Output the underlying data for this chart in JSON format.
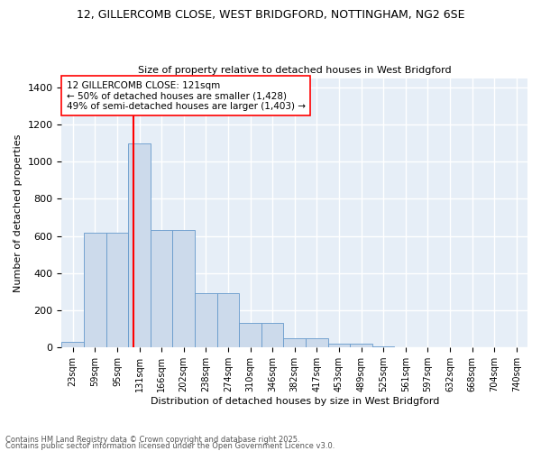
{
  "title_line1": "12, GILLERCOMB CLOSE, WEST BRIDGFORD, NOTTINGHAM, NG2 6SE",
  "title_line2": "Size of property relative to detached houses in West Bridgford",
  "xlabel": "Distribution of detached houses by size in West Bridgford",
  "ylabel": "Number of detached properties",
  "categories": [
    "23sqm",
    "59sqm",
    "95sqm",
    "131sqm",
    "166sqm",
    "202sqm",
    "238sqm",
    "274sqm",
    "310sqm",
    "346sqm",
    "382sqm",
    "417sqm",
    "453sqm",
    "489sqm",
    "525sqm",
    "561sqm",
    "597sqm",
    "632sqm",
    "668sqm",
    "704sqm",
    "740sqm"
  ],
  "values": [
    30,
    620,
    620,
    1100,
    630,
    630,
    290,
    290,
    130,
    130,
    50,
    50,
    20,
    20,
    5,
    0,
    0,
    0,
    0,
    0,
    0
  ],
  "bar_color": "#ccdaeb",
  "bar_edge_color": "#6699cc",
  "vline_x_index": 2.72,
  "vline_color": "red",
  "annotation_text": "12 GILLERCOMB CLOSE: 121sqm\n← 50% of detached houses are smaller (1,428)\n49% of semi-detached houses are larger (1,403) →",
  "annotation_box_color": "white",
  "annotation_box_edge": "red",
  "bg_color": "#e6eef7",
  "grid_color": "white",
  "footer_line1": "Contains HM Land Registry data © Crown copyright and database right 2025.",
  "footer_line2": "Contains public sector information licensed under the Open Government Licence v3.0.",
  "ylim": [
    0,
    1450
  ],
  "yticks": [
    0,
    200,
    400,
    600,
    800,
    1000,
    1200,
    1400
  ]
}
